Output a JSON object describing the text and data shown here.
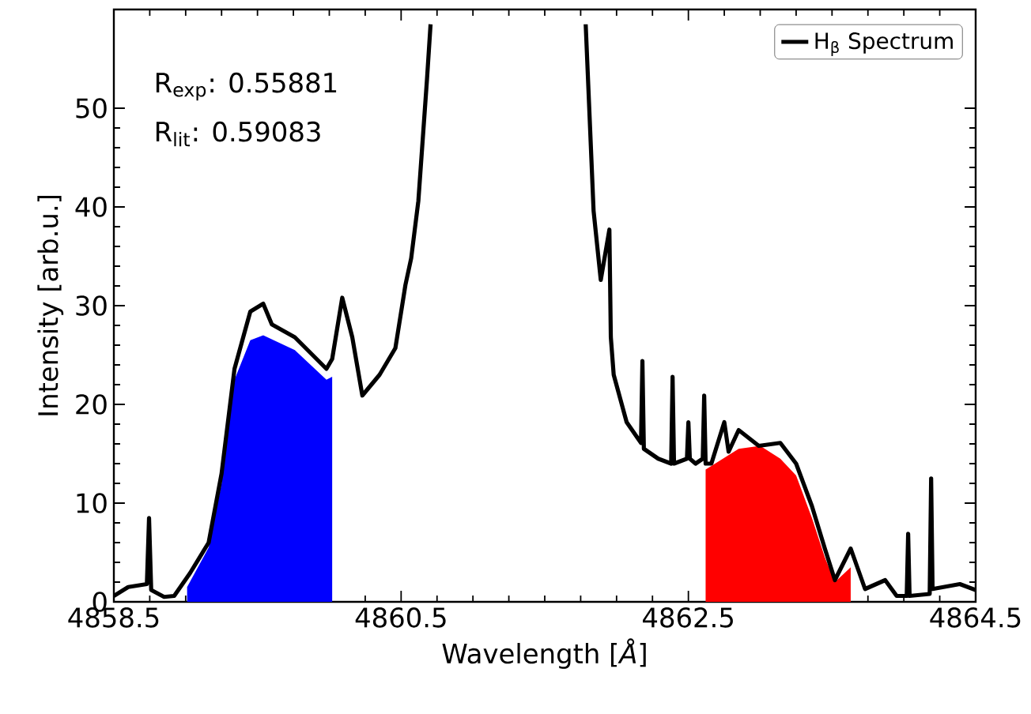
{
  "chart_data": {
    "type": "line",
    "xlabel": "Wavelength [*Å*]",
    "ylabel": "Intensity [arb.u.]",
    "xlim": [
      4858.5,
      4864.5
    ],
    "ylim": [
      0,
      60
    ],
    "xticks": [
      4858.5,
      4860.5,
      4862.5,
      4864.5
    ],
    "yticks": [
      0,
      10,
      20,
      30,
      40,
      50
    ],
    "legend": "top right",
    "marker": "none",
    "line_style": "solid",
    "annotations": [
      "R$_{exp}$: 0.55881",
      "R$_{lit}$: 0.59083"
    ],
    "series": [
      {
        "type": "area",
        "color": "#0000ff",
        "x": [
          4859.01,
          4859.01,
          4859.16,
          4859.25,
          4859.34,
          4859.45,
          4859.54,
          4859.76,
          4859.98,
          4860.02
        ],
        "values": [
          0,
          1.5,
          5.5,
          12,
          22.5,
          26.5,
          27,
          25.5,
          22.5,
          22.8
        ]
      },
      {
        "type": "area",
        "color": "#ff0000",
        "x": [
          4862.62,
          4862.62,
          4862.85,
          4863.0,
          4863.14,
          4863.25,
          4863.36,
          4863.45,
          4863.52,
          4863.63
        ],
        "values": [
          0,
          13.4,
          15.5,
          15.8,
          14.5,
          12.8,
          8.5,
          4.5,
          2.0,
          3.5
        ]
      },
      {
        "name": "H$_{β}$ Spectrum",
        "color": "#000000",
        "x": [
          4858.5,
          4858.6,
          4858.73,
          4858.745,
          4858.76,
          4858.85,
          4858.92,
          4859.03,
          4859.16,
          4859.25,
          4859.34,
          4859.41,
          4859.45,
          4859.54,
          4859.6,
          4859.76,
          4859.98,
          4860.02,
          4860.09,
          4860.16,
          4860.23,
          4860.35,
          4860.46,
          4860.53,
          4860.57,
          4860.62,
          4860.68,
          4860.705,
          4861.0,
          4861.785,
          4861.84,
          4861.89,
          4861.95,
          4861.96,
          4861.98,
          4862.07,
          4862.17,
          4862.18,
          4862.19,
          4862.29,
          4862.38,
          4862.39,
          4862.4,
          4862.49,
          4862.5,
          4862.51,
          4862.55,
          4862.6,
          4862.61,
          4862.62,
          4862.66,
          4862.75,
          4862.78,
          4862.85,
          4862.99,
          4863.14,
          4863.25,
          4863.36,
          4863.45,
          4863.52,
          4863.63,
          4863.73,
          4863.87,
          4863.95,
          4864.02,
          4864.03,
          4864.04,
          4864.18,
          4864.19,
          4864.2,
          4864.39,
          4864.5
        ],
        "values": [
          0.6,
          1.5,
          1.8,
          8.5,
          1.2,
          0.5,
          0.6,
          2.9,
          6,
          13,
          23.6,
          27.3,
          29.4,
          30.2,
          28.1,
          26.8,
          23.6,
          24.6,
          30.8,
          26.8,
          20.9,
          23,
          25.7,
          32.1,
          34.8,
          40.6,
          52.9,
          58.5,
          null,
          58.5,
          39.6,
          32.6,
          37.7,
          26.8,
          23,
          18.2,
          16.1,
          24.4,
          15.5,
          14.5,
          14,
          22.8,
          14,
          14.5,
          18.2,
          14.5,
          14,
          14.5,
          20.9,
          14,
          14,
          18.2,
          15.2,
          17.4,
          15.8,
          16.1,
          14,
          9.7,
          5.4,
          2.2,
          5.4,
          1.3,
          2.2,
          0.6,
          0.6,
          6.9,
          0.6,
          0.8,
          12.5,
          1.3,
          1.8,
          1.2
        ]
      }
    ]
  }
}
